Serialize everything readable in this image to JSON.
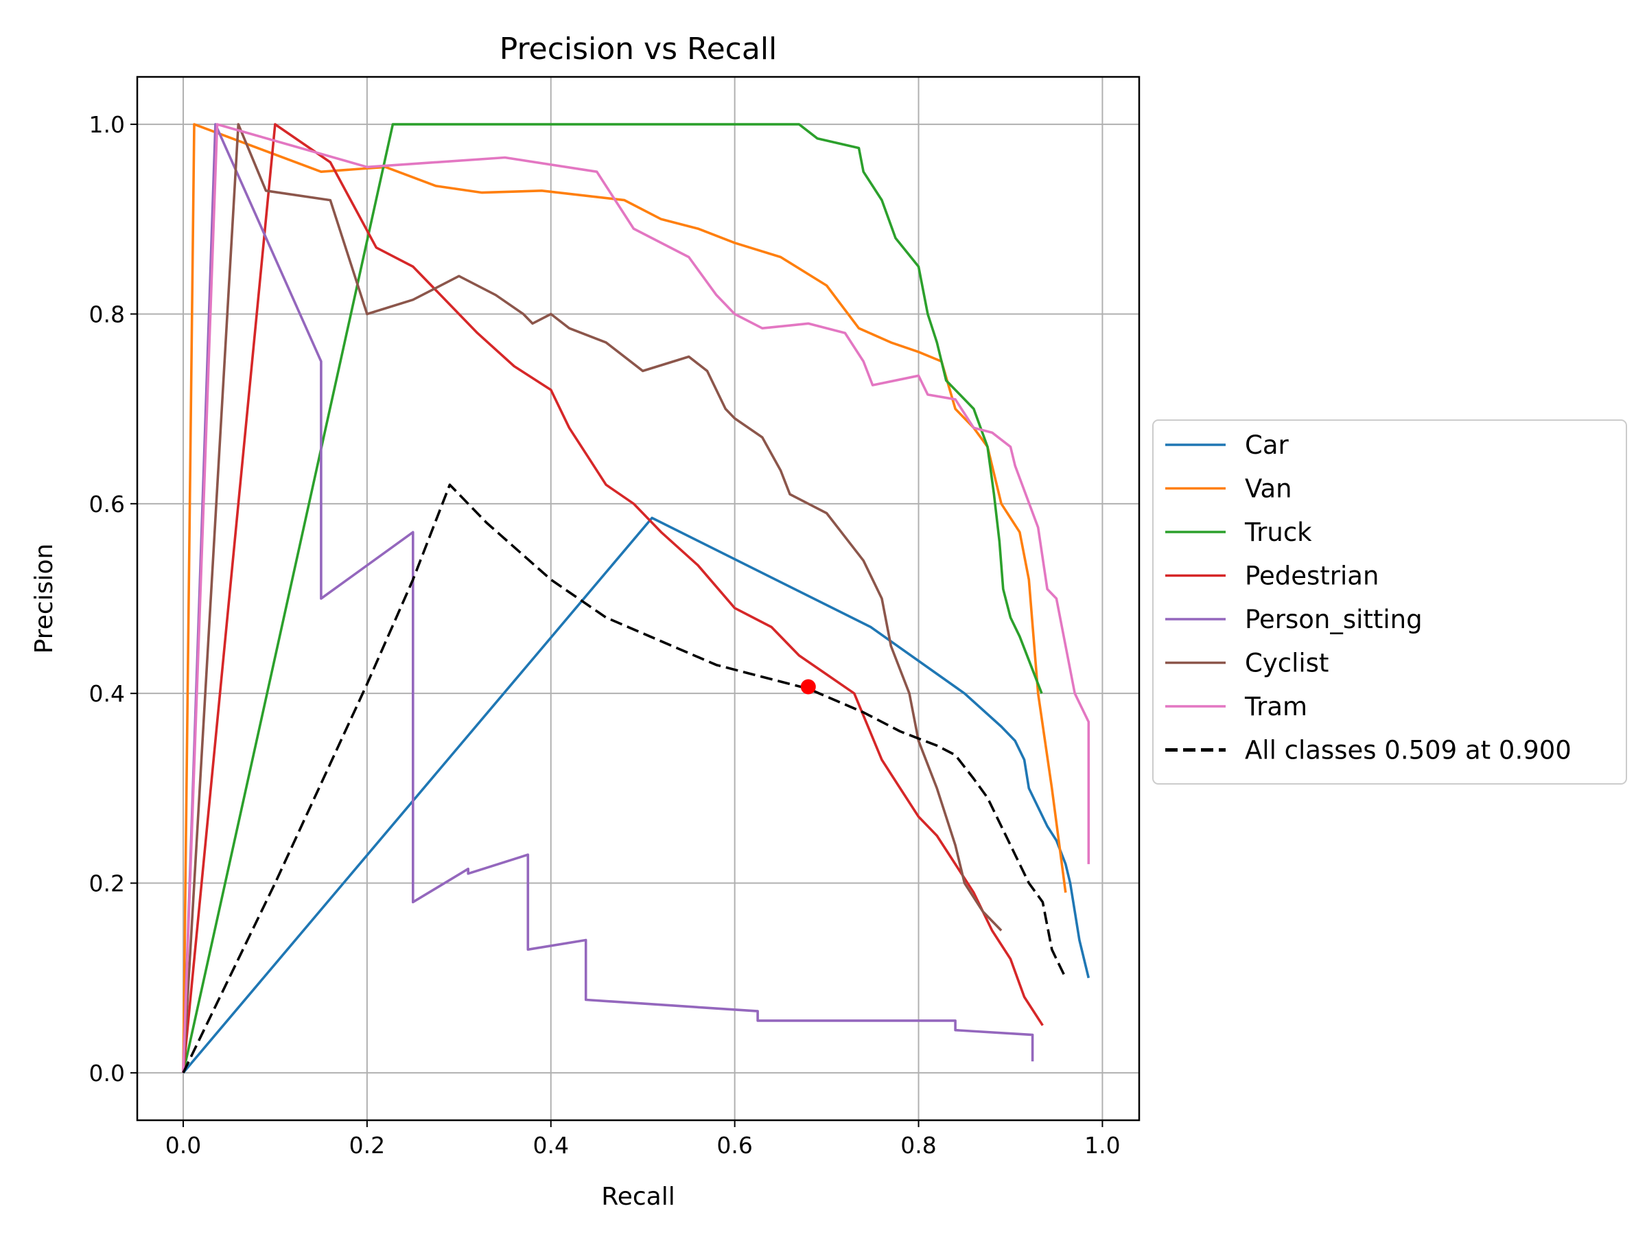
{
  "chart_data": {
    "type": "line",
    "title": "Precision vs Recall",
    "xlabel": "Recall",
    "ylabel": "Precision",
    "xlim": [
      -0.05,
      1.04
    ],
    "ylim": [
      -0.05,
      1.05
    ],
    "xticks": [
      0.0,
      0.2,
      0.4,
      0.6,
      0.8,
      1.0
    ],
    "xtick_labels": [
      "0.0",
      "0.2",
      "0.4",
      "0.6",
      "0.8",
      "1.0"
    ],
    "yticks": [
      0.0,
      0.2,
      0.4,
      0.6,
      0.8,
      1.0
    ],
    "ytick_labels": [
      "0.0",
      "0.2",
      "0.4",
      "0.6",
      "0.8",
      "1.0"
    ],
    "grid": true,
    "legend_position": "outside right",
    "series": [
      {
        "name": "Car",
        "color": "#1f77b4",
        "dash": "solid",
        "x": [
          0.0,
          0.51,
          0.748,
          0.85,
          0.89,
          0.905,
          0.915,
          0.92,
          0.93,
          0.94,
          0.95,
          0.96,
          0.965,
          0.97,
          0.975,
          0.98,
          0.985
        ],
        "y": [
          0.0,
          0.585,
          0.47,
          0.4,
          0.365,
          0.35,
          0.33,
          0.3,
          0.28,
          0.26,
          0.245,
          0.22,
          0.2,
          0.17,
          0.14,
          0.12,
          0.1
        ]
      },
      {
        "name": "Van",
        "color": "#ff7f0e",
        "dash": "solid",
        "x": [
          0.0,
          0.012,
          0.15,
          0.22,
          0.275,
          0.325,
          0.39,
          0.48,
          0.52,
          0.56,
          0.6,
          0.65,
          0.7,
          0.735,
          0.77,
          0.8,
          0.825,
          0.84,
          0.86,
          0.875,
          0.89,
          0.91,
          0.92,
          0.93,
          0.945,
          0.96
        ],
        "y": [
          0.0,
          1.0,
          0.95,
          0.955,
          0.935,
          0.928,
          0.93,
          0.92,
          0.9,
          0.89,
          0.875,
          0.86,
          0.83,
          0.785,
          0.77,
          0.76,
          0.75,
          0.7,
          0.68,
          0.66,
          0.6,
          0.57,
          0.52,
          0.4,
          0.3,
          0.19
        ]
      },
      {
        "name": "Truck",
        "color": "#2ca02c",
        "dash": "solid",
        "x": [
          0.0,
          0.228,
          0.67,
          0.69,
          0.735,
          0.74,
          0.75,
          0.76,
          0.775,
          0.8,
          0.81,
          0.82,
          0.83,
          0.845,
          0.86,
          0.875,
          0.882,
          0.888,
          0.892,
          0.9,
          0.91,
          0.934
        ],
        "y": [
          0.0,
          1.0,
          1.0,
          0.985,
          0.975,
          0.95,
          0.935,
          0.92,
          0.88,
          0.85,
          0.8,
          0.77,
          0.73,
          0.715,
          0.7,
          0.66,
          0.61,
          0.56,
          0.51,
          0.48,
          0.46,
          0.4
        ]
      },
      {
        "name": "Pedestrian",
        "color": "#d62728",
        "dash": "solid",
        "x": [
          0.0,
          0.1,
          0.16,
          0.21,
          0.25,
          0.29,
          0.32,
          0.36,
          0.4,
          0.42,
          0.44,
          0.46,
          0.49,
          0.52,
          0.56,
          0.6,
          0.64,
          0.67,
          0.7,
          0.73,
          0.76,
          0.78,
          0.8,
          0.82,
          0.84,
          0.86,
          0.88,
          0.9,
          0.915,
          0.935
        ],
        "y": [
          0.0,
          1.0,
          0.96,
          0.87,
          0.85,
          0.81,
          0.78,
          0.745,
          0.72,
          0.68,
          0.65,
          0.62,
          0.6,
          0.57,
          0.535,
          0.49,
          0.47,
          0.44,
          0.42,
          0.4,
          0.33,
          0.3,
          0.27,
          0.25,
          0.22,
          0.19,
          0.15,
          0.12,
          0.08,
          0.05
        ]
      },
      {
        "name": "Person_sitting",
        "color": "#9467bd",
        "dash": "solid",
        "x": [
          0.0,
          0.035,
          0.15,
          0.15,
          0.25,
          0.25,
          0.31,
          0.31,
          0.375,
          0.375,
          0.438,
          0.438,
          0.625,
          0.625,
          0.84,
          0.84,
          0.924,
          0.924
        ],
        "y": [
          0.0,
          1.0,
          0.75,
          0.5,
          0.57,
          0.18,
          0.215,
          0.21,
          0.23,
          0.13,
          0.14,
          0.077,
          0.065,
          0.055,
          0.055,
          0.045,
          0.04,
          0.012
        ]
      },
      {
        "name": "Cyclist",
        "color": "#8c564b",
        "dash": "solid",
        "x": [
          0.0,
          0.06,
          0.09,
          0.16,
          0.2,
          0.25,
          0.3,
          0.34,
          0.37,
          0.38,
          0.4,
          0.42,
          0.46,
          0.5,
          0.55,
          0.57,
          0.59,
          0.6,
          0.63,
          0.65,
          0.66,
          0.68,
          0.7,
          0.72,
          0.74,
          0.76,
          0.77,
          0.79,
          0.8,
          0.82,
          0.84,
          0.85,
          0.87,
          0.89
        ],
        "y": [
          0.0,
          1.0,
          0.93,
          0.92,
          0.8,
          0.815,
          0.84,
          0.82,
          0.8,
          0.79,
          0.8,
          0.785,
          0.77,
          0.74,
          0.755,
          0.74,
          0.7,
          0.69,
          0.67,
          0.635,
          0.61,
          0.6,
          0.59,
          0.565,
          0.54,
          0.5,
          0.45,
          0.4,
          0.35,
          0.3,
          0.24,
          0.2,
          0.17,
          0.15
        ]
      },
      {
        "name": "Tram",
        "color": "#e377c2",
        "dash": "solid",
        "x": [
          0.0,
          0.037,
          0.2,
          0.35,
          0.45,
          0.49,
          0.55,
          0.58,
          0.6,
          0.63,
          0.68,
          0.72,
          0.74,
          0.75,
          0.8,
          0.81,
          0.84,
          0.86,
          0.88,
          0.9,
          0.905,
          0.93,
          0.94,
          0.95,
          0.97,
          0.985,
          0.985
        ],
        "y": [
          0.0,
          1.0,
          0.955,
          0.965,
          0.95,
          0.89,
          0.86,
          0.82,
          0.8,
          0.785,
          0.79,
          0.78,
          0.75,
          0.725,
          0.735,
          0.715,
          0.71,
          0.68,
          0.675,
          0.66,
          0.64,
          0.575,
          0.51,
          0.5,
          0.4,
          0.37,
          0.22
        ]
      },
      {
        "name": "All classes 0.509 at 0.900",
        "color": "#000000",
        "dash": "dashed",
        "x": [
          0.0,
          0.1,
          0.2,
          0.25,
          0.29,
          0.33,
          0.4,
          0.46,
          0.52,
          0.58,
          0.64,
          0.68,
          0.74,
          0.78,
          0.82,
          0.84,
          0.86,
          0.875,
          0.89,
          0.905,
          0.92,
          0.935,
          0.945,
          0.95,
          0.96
        ],
        "y": [
          0.0,
          0.2,
          0.41,
          0.52,
          0.62,
          0.58,
          0.52,
          0.48,
          0.455,
          0.43,
          0.415,
          0.405,
          0.38,
          0.36,
          0.345,
          0.335,
          0.31,
          0.29,
          0.26,
          0.23,
          0.2,
          0.18,
          0.13,
          0.12,
          0.1
        ]
      }
    ],
    "annotations": [
      {
        "type": "point",
        "x": 0.68,
        "y": 0.407,
        "color": "#ff0000"
      }
    ]
  }
}
